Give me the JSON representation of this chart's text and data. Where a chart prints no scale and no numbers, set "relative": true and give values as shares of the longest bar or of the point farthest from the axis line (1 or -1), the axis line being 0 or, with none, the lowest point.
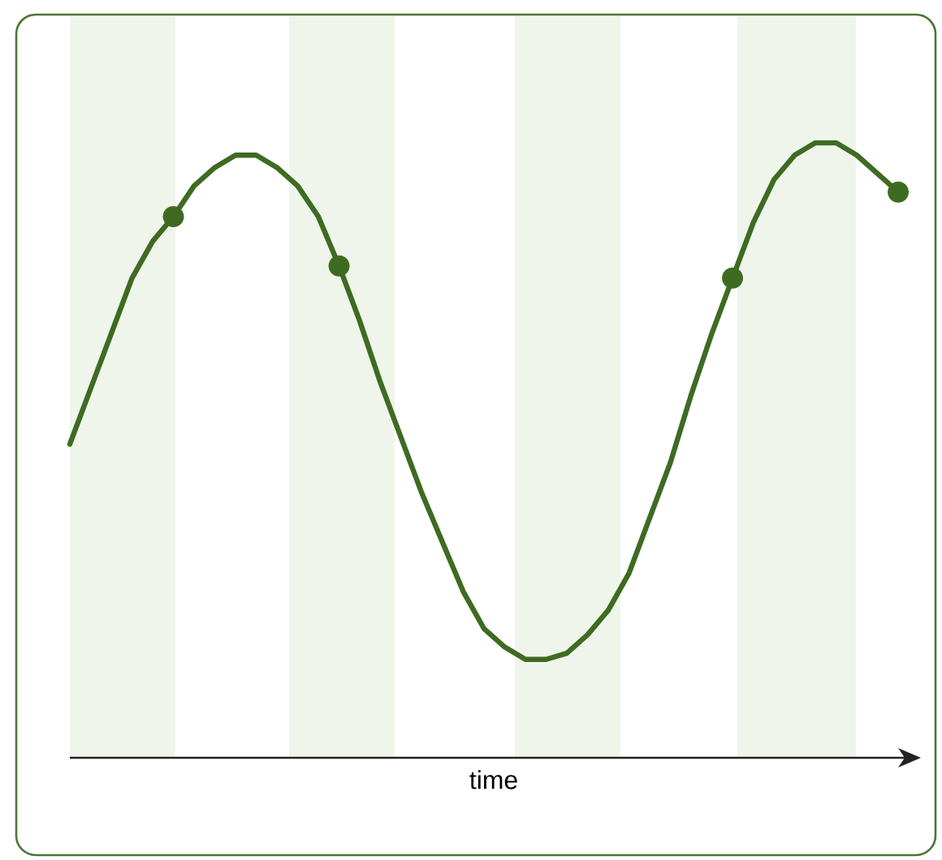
{
  "chart_data": {
    "type": "line",
    "relative": true,
    "xlabel": "time",
    "tick_labels": false,
    "categories": [
      null,
      null,
      null,
      null,
      null,
      null,
      null,
      null,
      null,
      null,
      null,
      null,
      null,
      null,
      null,
      null,
      null,
      null,
      null,
      null,
      null,
      null,
      null,
      null,
      null,
      null,
      null,
      null,
      null,
      null,
      null,
      null,
      null,
      null,
      null,
      null,
      null,
      null,
      null,
      null,
      null
    ],
    "series": [
      {
        "color": "#3e6b21",
        "marker": "none",
        "line_style": "solid",
        "values": [
          0.51,
          0.6,
          0.69,
          0.78,
          0.84,
          0.88,
          0.93,
          0.96,
          0.98,
          0.98,
          0.96,
          0.93,
          0.88,
          0.8,
          0.71,
          0.61,
          0.52,
          0.43,
          0.35,
          0.27,
          0.21,
          0.18,
          0.16,
          0.16,
          0.17,
          0.2,
          0.24,
          0.3,
          0.39,
          0.48,
          0.59,
          0.69,
          0.78,
          0.87,
          0.94,
          0.98,
          1.0,
          1.0,
          0.98,
          0.95,
          0.92
        ]
      }
    ]
  }
}
